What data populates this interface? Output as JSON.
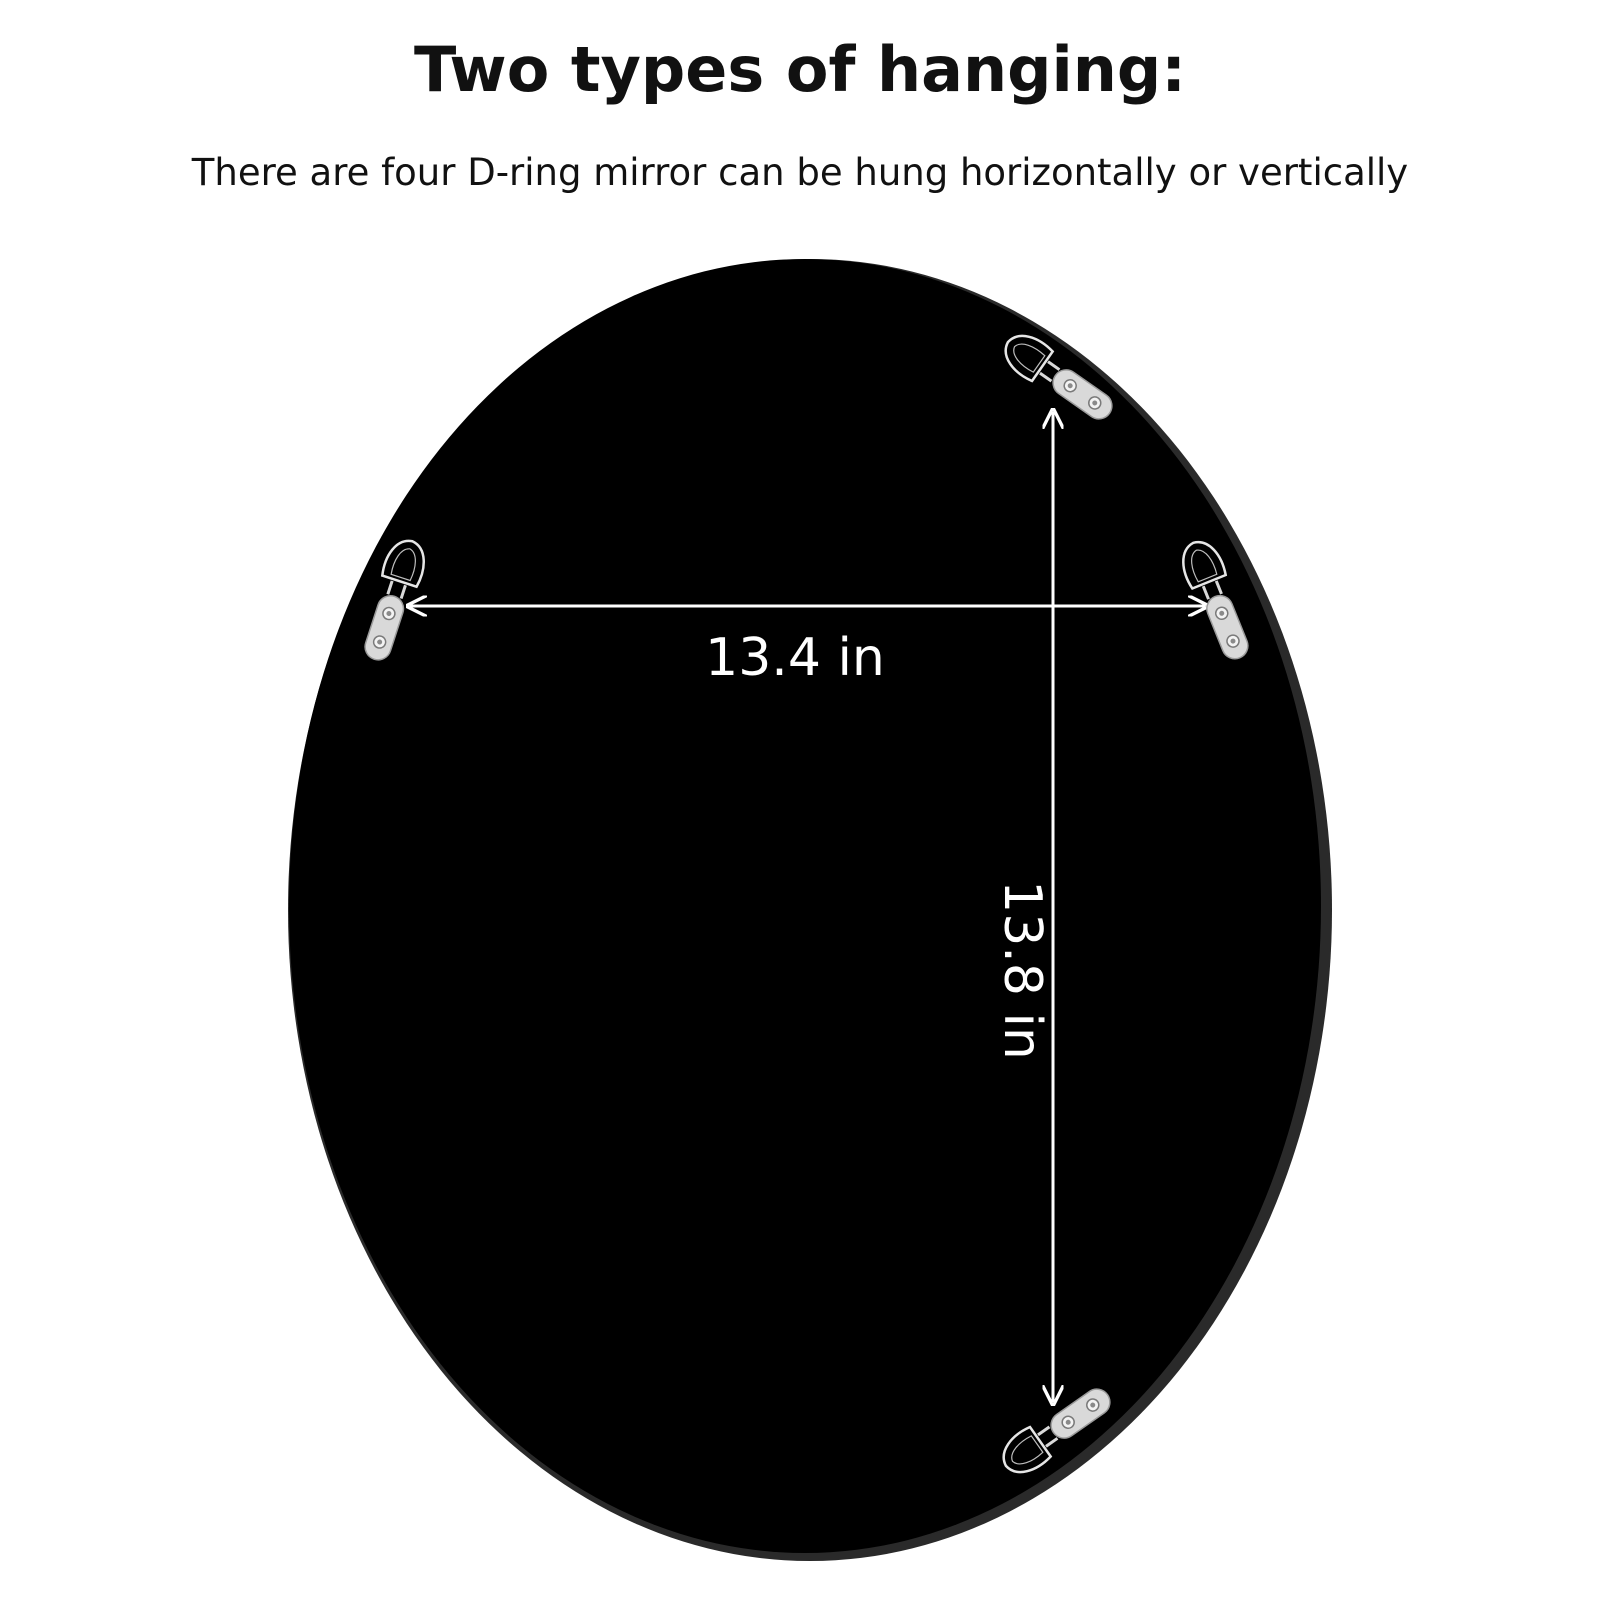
{
  "heading": {
    "title": "Two types of hanging:",
    "subtitle": "There are four D-ring mirror can be hung horizontally or vertically"
  },
  "dimensions": {
    "width_label": "13.4 in",
    "height_label": "13.8 in"
  },
  "colors": {
    "mirror_back": "#000000",
    "mirror_edge": "#3a3a3a",
    "arrow": "#ffffff",
    "hardware": "#d9d9d9",
    "background": "#ffffff"
  },
  "hardware": {
    "icon": "d-ring-hanger-icon",
    "count": 4
  }
}
